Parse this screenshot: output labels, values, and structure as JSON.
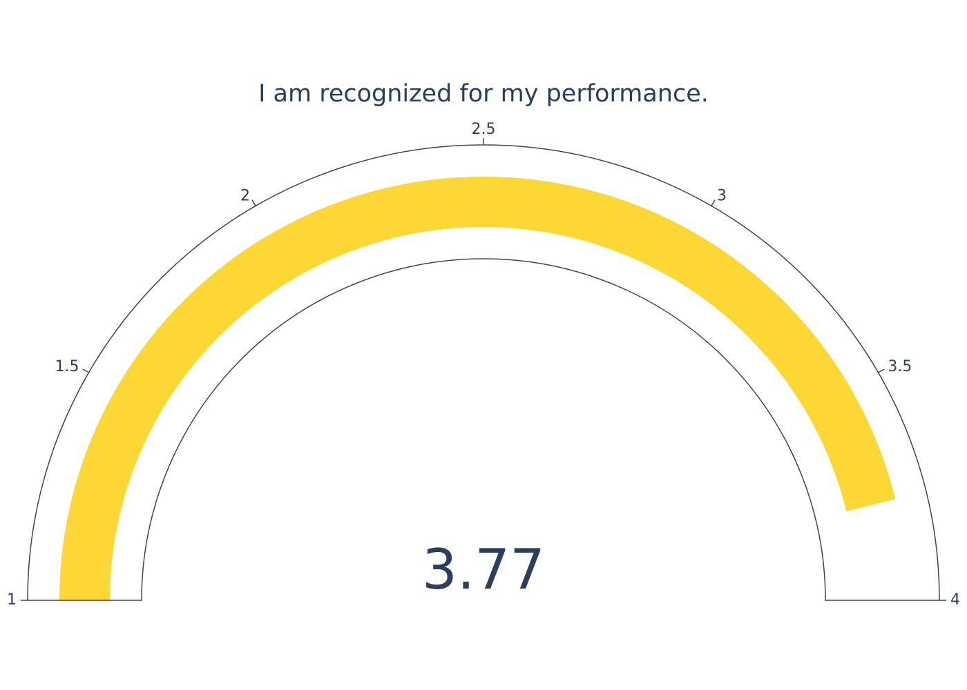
{
  "chart_data": {
    "type": "gauge",
    "title": "I am recognized for my performance.",
    "value": 3.77,
    "value_text": "3.77",
    "range": [
      1,
      4
    ],
    "ticks": [
      1,
      1.5,
      2,
      2.5,
      3,
      3.5,
      4
    ],
    "tick_labels": [
      "1",
      "1.5",
      "2",
      "2.5",
      "3",
      "3.5",
      "4"
    ],
    "bar_color": "#fdd835",
    "outline_color": "#444444",
    "text_color": "#2a3f5f"
  }
}
